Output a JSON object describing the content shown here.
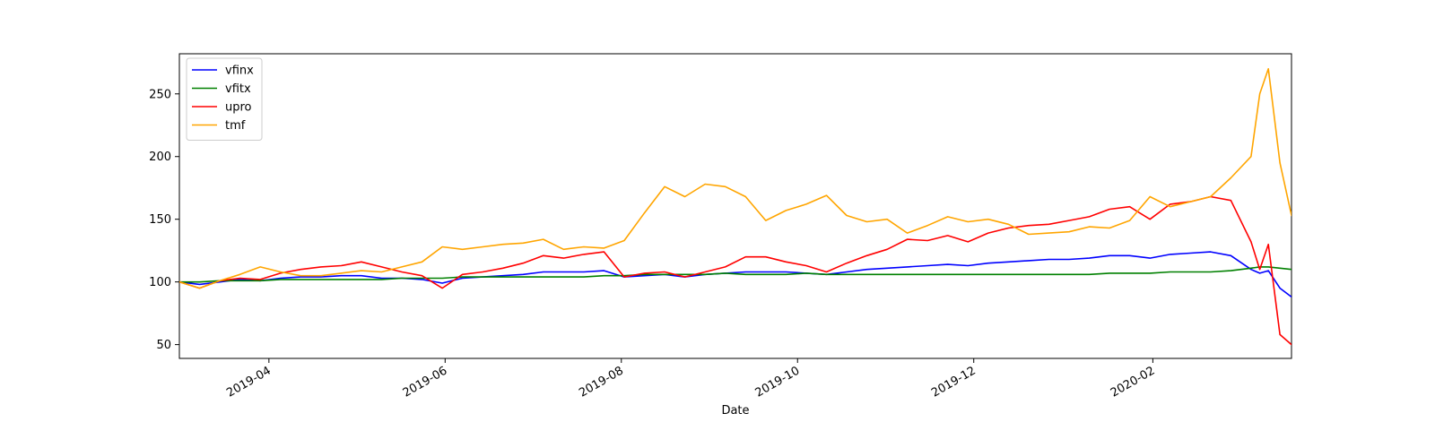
{
  "chart_data": {
    "type": "line",
    "title": "",
    "xlabel": "Date",
    "ylabel": "",
    "xlim": [
      "2019-03-01",
      "2020-03-20"
    ],
    "ylim": [
      39,
      282
    ],
    "x_ticks": [
      "2019-04",
      "2019-06",
      "2019-08",
      "2019-10",
      "2019-12",
      "2020-02"
    ],
    "y_ticks": [
      50,
      100,
      150,
      200,
      250
    ],
    "legend_position": "top-left",
    "grid": false,
    "x": [
      "2019-03-01",
      "2019-03-08",
      "2019-03-15",
      "2019-03-22",
      "2019-03-29",
      "2019-04-05",
      "2019-04-12",
      "2019-04-19",
      "2019-04-26",
      "2019-05-03",
      "2019-05-10",
      "2019-05-17",
      "2019-05-24",
      "2019-05-31",
      "2019-06-07",
      "2019-06-14",
      "2019-06-21",
      "2019-06-28",
      "2019-07-05",
      "2019-07-12",
      "2019-07-19",
      "2019-07-26",
      "2019-08-02",
      "2019-08-09",
      "2019-08-16",
      "2019-08-23",
      "2019-08-30",
      "2019-09-06",
      "2019-09-13",
      "2019-09-20",
      "2019-09-27",
      "2019-10-04",
      "2019-10-11",
      "2019-10-18",
      "2019-10-25",
      "2019-11-01",
      "2019-11-08",
      "2019-11-15",
      "2019-11-22",
      "2019-11-29",
      "2019-12-06",
      "2019-12-13",
      "2019-12-20",
      "2019-12-27",
      "2020-01-03",
      "2020-01-10",
      "2020-01-17",
      "2020-01-24",
      "2020-01-31",
      "2020-02-07",
      "2020-02-14",
      "2020-02-21",
      "2020-02-28",
      "2020-03-06",
      "2020-03-09",
      "2020-03-12",
      "2020-03-16",
      "2020-03-20"
    ],
    "series": [
      {
        "name": "vfinx",
        "color": "#0000ff",
        "values": [
          100,
          98,
          100,
          102,
          101,
          103,
          104,
          104,
          105,
          105,
          103,
          103,
          102,
          99,
          103,
          104,
          105,
          106,
          108,
          108,
          108,
          109,
          104,
          105,
          106,
          104,
          106,
          107,
          108,
          108,
          108,
          107,
          106,
          108,
          110,
          111,
          112,
          113,
          114,
          113,
          115,
          116,
          117,
          118,
          118,
          119,
          121,
          121,
          119,
          122,
          123,
          124,
          121,
          110,
          107,
          109,
          95,
          88
        ]
      },
      {
        "name": "vfitx",
        "color": "#008000",
        "values": [
          100,
          100,
          101,
          101,
          101,
          102,
          102,
          102,
          102,
          102,
          102,
          103,
          103,
          103,
          104,
          104,
          104,
          104,
          104,
          104,
          104,
          105,
          105,
          106,
          106,
          106,
          106,
          107,
          106,
          106,
          106,
          107,
          106,
          106,
          106,
          106,
          106,
          106,
          106,
          106,
          106,
          106,
          106,
          106,
          106,
          106,
          107,
          107,
          107,
          108,
          108,
          108,
          109,
          111,
          112,
          112,
          111,
          110
        ]
      },
      {
        "name": "upro",
        "color": "#ff0000",
        "values": [
          100,
          95,
          101,
          103,
          102,
          107,
          110,
          112,
          113,
          116,
          112,
          108,
          105,
          95,
          106,
          108,
          111,
          115,
          121,
          119,
          122,
          124,
          104,
          107,
          108,
          104,
          108,
          112,
          120,
          120,
          116,
          113,
          108,
          115,
          121,
          126,
          134,
          133,
          137,
          132,
          139,
          143,
          145,
          146,
          149,
          152,
          158,
          160,
          150,
          162,
          164,
          168,
          165,
          132,
          110,
          130,
          58,
          50
        ]
      },
      {
        "name": "tmf",
        "color": "#ffa500",
        "values": [
          100,
          95,
          101,
          106,
          112,
          108,
          105,
          105,
          107,
          109,
          108,
          112,
          116,
          128,
          126,
          128,
          130,
          131,
          134,
          126,
          128,
          127,
          133,
          155,
          176,
          168,
          178,
          176,
          168,
          149,
          157,
          162,
          169,
          153,
          148,
          150,
          139,
          145,
          152,
          148,
          150,
          146,
          138,
          139,
          140,
          144,
          143,
          149,
          168,
          160,
          164,
          168,
          183,
          200,
          250,
          270,
          195,
          153
        ]
      }
    ]
  }
}
